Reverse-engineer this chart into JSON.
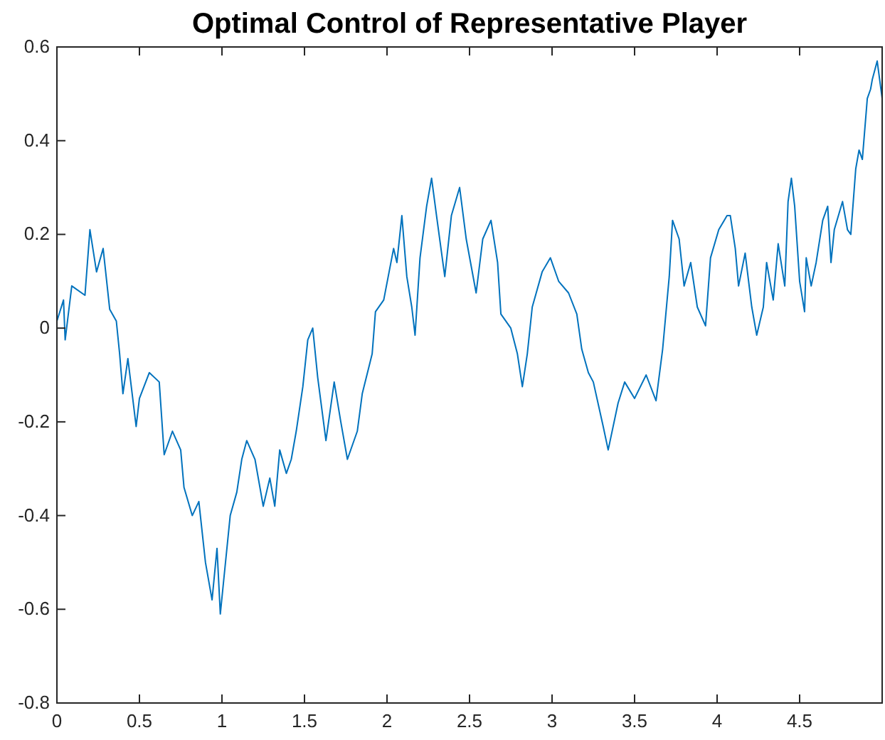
{
  "chart_data": {
    "type": "line",
    "title": "Optimal Control of Representative Player",
    "xlim": [
      0,
      5
    ],
    "ylim": [
      -0.8,
      0.6
    ],
    "xticks": [
      0,
      0.5,
      1,
      1.5,
      2,
      2.5,
      3,
      3.5,
      4,
      4.5
    ],
    "yticks": [
      -0.8,
      -0.6,
      -0.4,
      -0.2,
      0,
      0.2,
      0.4,
      0.6
    ],
    "marker": "none",
    "line_style": "solid",
    "series": [
      {
        "color": "#0072bd",
        "x": [
          0,
          0.04,
          0.05,
          0.09,
          0.17,
          0.2,
          0.24,
          0.28,
          0.32,
          0.36,
          0.38,
          0.4,
          0.43,
          0.48,
          0.5,
          0.56,
          0.62,
          0.65,
          0.7,
          0.75,
          0.77,
          0.82,
          0.86,
          0.9,
          0.94,
          0.97,
          0.99,
          1.01,
          1.05,
          1.09,
          1.12,
          1.15,
          1.2,
          1.25,
          1.29,
          1.32,
          1.35,
          1.39,
          1.42,
          1.45,
          1.49,
          1.52,
          1.55,
          1.58,
          1.63,
          1.68,
          1.72,
          1.76,
          1.82,
          1.85,
          1.91,
          1.93,
          1.98,
          2.04,
          2.06,
          2.09,
          2.12,
          2.15,
          2.17,
          2.2,
          2.24,
          2.27,
          2.3,
          2.35,
          2.39,
          2.44,
          2.48,
          2.54,
          2.58,
          2.63,
          2.67,
          2.69,
          2.75,
          2.79,
          2.82,
          2.85,
          2.88,
          2.94,
          2.99,
          3.04,
          3.1,
          3.15,
          3.18,
          3.22,
          3.25,
          3.31,
          3.34,
          3.4,
          3.44,
          3.5,
          3.57,
          3.63,
          3.67,
          3.71,
          3.73,
          3.77,
          3.8,
          3.84,
          3.88,
          3.93,
          3.96,
          4.01,
          4.06,
          4.08,
          4.11,
          4.13,
          4.17,
          4.21,
          4.24,
          4.28,
          4.3,
          4.34,
          4.37,
          4.41,
          4.43,
          4.45,
          4.47,
          4.5,
          4.53,
          4.54,
          4.57,
          4.6,
          4.64,
          4.67,
          4.69,
          4.71,
          4.76,
          4.79,
          4.81,
          4.84,
          4.86,
          4.88,
          4.91,
          4.93,
          4.94,
          4.97,
          5.0
        ],
        "values": [
          0.015,
          0.06,
          -0.025,
          0.09,
          0.07,
          0.21,
          0.12,
          0.17,
          0.04,
          0.015,
          -0.055,
          -0.14,
          -0.065,
          -0.21,
          -0.15,
          -0.095,
          -0.115,
          -0.27,
          -0.22,
          -0.26,
          -0.34,
          -0.4,
          -0.37,
          -0.5,
          -0.58,
          -0.47,
          -0.61,
          -0.54,
          -0.4,
          -0.35,
          -0.28,
          -0.24,
          -0.28,
          -0.38,
          -0.32,
          -0.38,
          -0.26,
          -0.31,
          -0.28,
          -0.22,
          -0.125,
          -0.025,
          0,
          -0.105,
          -0.24,
          -0.115,
          -0.2,
          -0.28,
          -0.22,
          -0.14,
          -0.055,
          0.035,
          0.06,
          0.17,
          0.14,
          0.24,
          0.11,
          0.045,
          -0.015,
          0.15,
          0.26,
          0.32,
          0.24,
          0.11,
          0.24,
          0.3,
          0.19,
          0.075,
          0.19,
          0.23,
          0.14,
          0.03,
          0,
          -0.055,
          -0.125,
          -0.055,
          0.045,
          0.12,
          0.15,
          0.1,
          0.075,
          0.03,
          -0.045,
          -0.095,
          -0.115,
          -0.21,
          -0.26,
          -0.16,
          -0.115,
          -0.15,
          -0.1,
          -0.155,
          -0.045,
          0.11,
          0.23,
          0.19,
          0.09,
          0.14,
          0.045,
          0.005,
          0.15,
          0.21,
          0.24,
          0.24,
          0.17,
          0.09,
          0.16,
          0.045,
          -0.015,
          0.045,
          0.14,
          0.06,
          0.18,
          0.09,
          0.27,
          0.32,
          0.26,
          0.1,
          0.035,
          0.15,
          0.09,
          0.14,
          0.23,
          0.26,
          0.14,
          0.21,
          0.27,
          0.21,
          0.2,
          0.34,
          0.38,
          0.36,
          0.49,
          0.51,
          0.53,
          0.57,
          0.49
        ]
      }
    ]
  }
}
